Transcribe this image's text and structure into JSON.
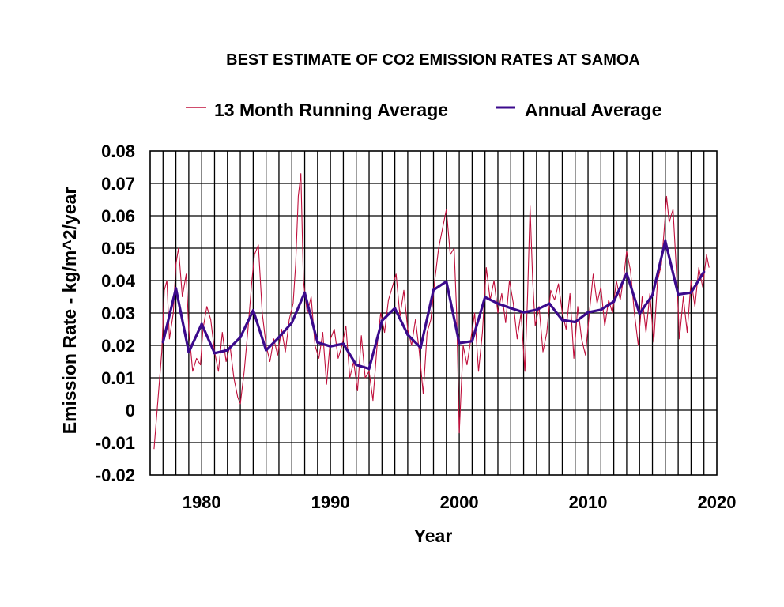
{
  "chart_data": {
    "type": "line",
    "title": "BEST ESTIMATE OF CO2 EMISSION RATES AT SAMOA",
    "xlabel": "Year",
    "ylabel": "Emission Rate - kg/m^2/year",
    "xlim": [
      1976,
      2020
    ],
    "ylim": [
      -0.02,
      0.08
    ],
    "x_ticks": [
      1980,
      1990,
      2000,
      2010,
      2020
    ],
    "x_tick_labels": [
      "1980",
      "1990",
      "2000",
      "2010",
      "2020"
    ],
    "y_ticks": [
      -0.02,
      -0.01,
      0,
      0.01,
      0.02,
      0.03,
      0.04,
      0.05,
      0.06,
      0.07,
      0.08
    ],
    "y_tick_labels": [
      "-0.02",
      "-0.01",
      "0",
      "0.01",
      "0.02",
      "0.03",
      "0.04",
      "0.05",
      "0.06",
      "0.07",
      "0.08"
    ],
    "grid": true,
    "x_grid_step": 1,
    "legend": {
      "placement": "top-center",
      "entries": [
        "13 Month Running Average",
        "Annual Average"
      ]
    },
    "series": [
      {
        "name": "13 Month Running Average",
        "color": "#c0103c",
        "note": "approximate key points of the noisy monthly series",
        "x": [
          1976.3,
          1976.6,
          1976.9,
          1977.1,
          1977.3,
          1977.5,
          1977.8,
          1978.0,
          1978.2,
          1978.5,
          1978.8,
          1979.0,
          1979.3,
          1979.6,
          1979.9,
          1980.1,
          1980.4,
          1980.7,
          1981.0,
          1981.3,
          1981.6,
          1981.9,
          1982.2,
          1982.5,
          1982.8,
          1983.0,
          1983.3,
          1983.6,
          1983.9,
          1984.1,
          1984.4,
          1984.7,
          1985.0,
          1985.3,
          1985.6,
          1985.9,
          1986.2,
          1986.5,
          1986.8,
          1987.1,
          1987.3,
          1987.5,
          1987.7,
          1987.9,
          1988.2,
          1988.5,
          1988.8,
          1989.1,
          1989.4,
          1989.7,
          1990.0,
          1990.3,
          1990.6,
          1990.9,
          1991.2,
          1991.5,
          1991.8,
          1992.1,
          1992.4,
          1992.7,
          1993.0,
          1993.3,
          1993.6,
          1993.9,
          1994.2,
          1994.5,
          1994.8,
          1995.1,
          1995.4,
          1995.7,
          1996.0,
          1996.3,
          1996.6,
          1996.9,
          1997.2,
          1997.5,
          1997.8,
          1998.1,
          1998.4,
          1998.7,
          1999.0,
          1999.3,
          1999.6,
          1999.8,
          2000.0,
          2000.3,
          2000.6,
          2000.9,
          2001.2,
          2001.5,
          2001.8,
          2002.1,
          2002.4,
          2002.7,
          2003.0,
          2003.3,
          2003.6,
          2003.9,
          2004.2,
          2004.5,
          2004.8,
          2005.1,
          2005.3,
          2005.5,
          2005.7,
          2005.9,
          2006.2,
          2006.5,
          2006.8,
          2007.1,
          2007.4,
          2007.7,
          2008.0,
          2008.3,
          2008.6,
          2008.9,
          2009.2,
          2009.5,
          2009.8,
          2010.1,
          2010.4,
          2010.7,
          2011.0,
          2011.3,
          2011.6,
          2011.9,
          2012.2,
          2012.5,
          2012.8,
          2013.0,
          2013.3,
          2013.6,
          2013.9,
          2014.2,
          2014.5,
          2014.8,
          2015.1,
          2015.4,
          2015.7,
          2015.9,
          2016.1,
          2016.3,
          2016.6,
          2016.9,
          2017.1,
          2017.4,
          2017.7,
          2018.0,
          2018.3,
          2018.6,
          2018.9,
          2019.2,
          2019.4
        ],
        "y": [
          -0.012,
          0.003,
          0.018,
          0.037,
          0.04,
          0.022,
          0.03,
          0.045,
          0.05,
          0.035,
          0.042,
          0.025,
          0.012,
          0.016,
          0.014,
          0.025,
          0.032,
          0.028,
          0.018,
          0.012,
          0.024,
          0.015,
          0.02,
          0.01,
          0.004,
          0.002,
          0.012,
          0.025,
          0.04,
          0.048,
          0.051,
          0.03,
          0.02,
          0.015,
          0.022,
          0.017,
          0.025,
          0.018,
          0.028,
          0.033,
          0.045,
          0.066,
          0.073,
          0.04,
          0.03,
          0.035,
          0.02,
          0.016,
          0.024,
          0.008,
          0.022,
          0.025,
          0.016,
          0.02,
          0.026,
          0.01,
          0.015,
          0.006,
          0.023,
          0.01,
          0.012,
          0.003,
          0.019,
          0.03,
          0.024,
          0.034,
          0.038,
          0.042,
          0.029,
          0.037,
          0.025,
          0.02,
          0.028,
          0.018,
          0.005,
          0.024,
          0.028,
          0.04,
          0.05,
          0.056,
          0.062,
          0.048,
          0.05,
          0.03,
          -0.007,
          0.02,
          0.014,
          0.022,
          0.03,
          0.012,
          0.024,
          0.044,
          0.034,
          0.04,
          0.03,
          0.036,
          0.027,
          0.04,
          0.033,
          0.022,
          0.03,
          0.012,
          0.035,
          0.063,
          0.04,
          0.026,
          0.032,
          0.018,
          0.024,
          0.037,
          0.034,
          0.039,
          0.03,
          0.025,
          0.036,
          0.016,
          0.032,
          0.022,
          0.017,
          0.03,
          0.042,
          0.033,
          0.038,
          0.026,
          0.034,
          0.03,
          0.04,
          0.034,
          0.042,
          0.049,
          0.043,
          0.03,
          0.02,
          0.035,
          0.024,
          0.036,
          0.021,
          0.04,
          0.045,
          0.055,
          0.066,
          0.058,
          0.062,
          0.04,
          0.022,
          0.035,
          0.024,
          0.04,
          0.032,
          0.044,
          0.038,
          0.048,
          0.044
        ]
      },
      {
        "name": "Annual Average",
        "color": "#3b0a8c",
        "x": [
          1977,
          1978,
          1979,
          1980,
          1981,
          1982,
          1983,
          1984,
          1985,
          1986,
          1987,
          1988,
          1989,
          1990,
          1991,
          1992,
          1993,
          1994,
          1995,
          1996,
          1997,
          1998,
          1999,
          2000,
          2001,
          2002,
          2003,
          2004,
          2005,
          2006,
          2007,
          2008,
          2009,
          2010,
          2011,
          2012,
          2013,
          2014,
          2015,
          2016,
          2017,
          2018,
          2019
        ],
        "y": [
          0.021,
          0.0376,
          0.0179,
          0.0266,
          0.0176,
          0.0185,
          0.0225,
          0.0308,
          0.0185,
          0.0225,
          0.027,
          0.0363,
          0.0209,
          0.0197,
          0.0205,
          0.014,
          0.0128,
          0.0276,
          0.0315,
          0.0233,
          0.0193,
          0.0371,
          0.0397,
          0.0207,
          0.0213,
          0.0349,
          0.0329,
          0.0315,
          0.0302,
          0.031,
          0.0329,
          0.0278,
          0.0272,
          0.0302,
          0.031,
          0.0335,
          0.0422,
          0.0298,
          0.0355,
          0.0522,
          0.0357,
          0.0363,
          0.0427
        ]
      }
    ]
  }
}
